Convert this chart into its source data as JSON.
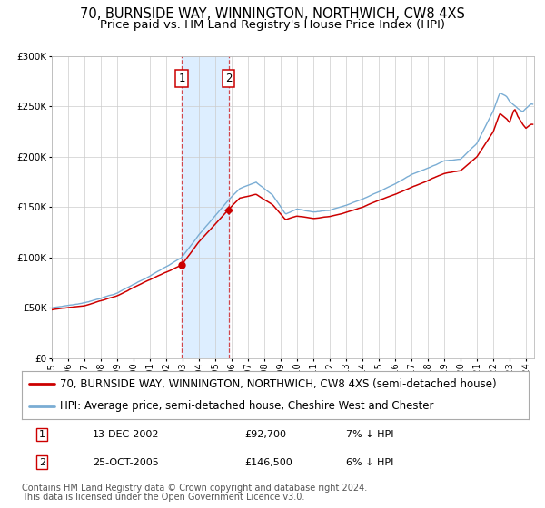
{
  "title": "70, BURNSIDE WAY, WINNINGTON, NORTHWICH, CW8 4XS",
  "subtitle": "Price paid vs. HM Land Registry's House Price Index (HPI)",
  "legend_line1": "70, BURNSIDE WAY, WINNINGTON, NORTHWICH, CW8 4XS (semi-detached house)",
  "legend_line2": "HPI: Average price, semi-detached house, Cheshire West and Chester",
  "footnote1": "Contains HM Land Registry data © Crown copyright and database right 2024.",
  "footnote2": "This data is licensed under the Open Government Licence v3.0.",
  "transaction1_date": "13-DEC-2002",
  "transaction1_price": "£92,700",
  "transaction1_label": "7% ↓ HPI",
  "transaction2_date": "25-OCT-2005",
  "transaction2_price": "£146,500",
  "transaction2_label": "6% ↓ HPI",
  "sale_color": "#cc0000",
  "hpi_color": "#7aadd4",
  "highlight_color": "#ddeeff",
  "vline_color": "#cc0000",
  "background_color": "#ffffff",
  "grid_color": "#cccccc",
  "ylim": [
    0,
    300000
  ],
  "xlim_start": 1995.0,
  "xlim_end": 2024.5,
  "transaction1_x": 2002.95,
  "transaction2_x": 2005.81,
  "title_fontsize": 10.5,
  "subtitle_fontsize": 9.5,
  "tick_fontsize": 7.5,
  "legend_fontsize": 8.5,
  "footnote_fontsize": 7.0,
  "table_fontsize": 8.0
}
